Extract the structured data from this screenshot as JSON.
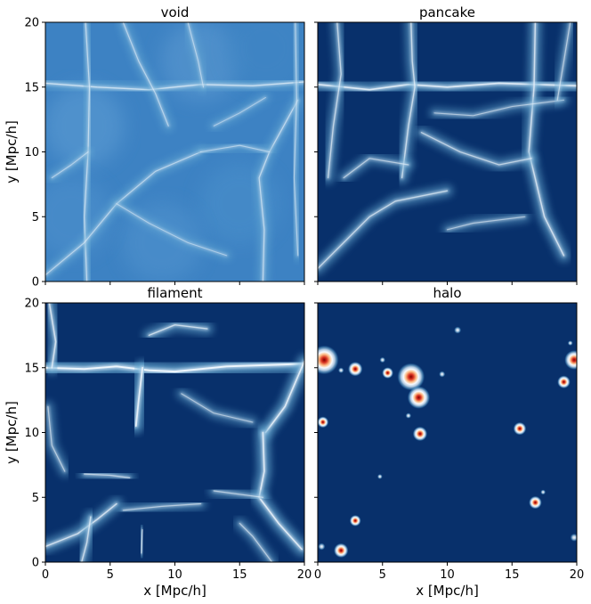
{
  "figure": {
    "colormap": [
      "#08306b",
      "#2171b5",
      "#6baed6",
      "#c6dbef",
      "#f7fbff",
      "#fdbb84",
      "#d7301f",
      "#7f0000"
    ]
  },
  "chart_data": [
    {
      "type": "heatmap",
      "title": "void",
      "xlabel": "",
      "ylabel": "y [Mpc/h]",
      "xlim": [
        0,
        20
      ],
      "ylim": [
        0,
        20
      ],
      "xticks": [
        "0",
        "5",
        "10",
        "15",
        "20"
      ],
      "yticks": [
        "0",
        "5",
        "10",
        "15",
        "20"
      ],
      "background": "#3d82c3",
      "filaments": [
        {
          "points": [
            [
              0,
              15.3
            ],
            [
              4,
              15.0
            ],
            [
              8,
              14.8
            ],
            [
              12,
              15.2
            ],
            [
              16,
              15.1
            ],
            [
              20,
              15.4
            ]
          ],
          "intensity": 0.45
        },
        {
          "points": [
            [
              3.2,
              0
            ],
            [
              3.0,
              5
            ],
            [
              3.3,
              10
            ],
            [
              3.4,
              15
            ],
            [
              3.1,
              20
            ]
          ],
          "intensity": 0.35
        },
        {
          "points": [
            [
              16.8,
              0
            ],
            [
              16.9,
              4
            ],
            [
              16.5,
              8
            ],
            [
              17.3,
              10
            ],
            [
              19.5,
              14
            ]
          ],
          "intensity": 0.35
        },
        {
          "points": [
            [
              0,
              0.5
            ],
            [
              3,
              3
            ],
            [
              5.5,
              6
            ],
            [
              8.5,
              8.5
            ],
            [
              12,
              10
            ]
          ],
          "intensity": 0.3
        },
        {
          "points": [
            [
              6,
              20
            ],
            [
              7.2,
              17
            ],
            [
              8.5,
              14.5
            ],
            [
              9.5,
              12
            ]
          ],
          "intensity": 0.3
        },
        {
          "points": [
            [
              11,
              20
            ],
            [
              11.8,
              17
            ],
            [
              12.2,
              15
            ]
          ],
          "intensity": 0.25
        },
        {
          "points": [
            [
              0.5,
              8
            ],
            [
              2,
              9
            ],
            [
              3.3,
              10
            ]
          ],
          "intensity": 0.25
        },
        {
          "points": [
            [
              12,
              10
            ],
            [
              15,
              10.5
            ],
            [
              17.3,
              10
            ]
          ],
          "intensity": 0.25
        },
        {
          "points": [
            [
              5.5,
              6
            ],
            [
              8,
              4.5
            ],
            [
              11,
              3
            ],
            [
              14,
              2
            ]
          ],
          "intensity": 0.2
        },
        {
          "points": [
            [
              19.3,
              20
            ],
            [
              19.4,
              14
            ],
            [
              19.2,
              8
            ],
            [
              19.5,
              2
            ]
          ],
          "intensity": 0.25
        },
        {
          "points": [
            [
              13,
              12
            ],
            [
              15,
              13
            ],
            [
              17,
              14.2
            ]
          ],
          "intensity": 0.2
        }
      ],
      "halos": []
    },
    {
      "type": "heatmap",
      "title": "pancake",
      "xlabel": "",
      "ylabel": "",
      "xlim": [
        0,
        20
      ],
      "ylim": [
        0,
        20
      ],
      "xticks": [
        "0",
        "5",
        "10",
        "15",
        "20"
      ],
      "yticks": [
        "0",
        "5",
        "10",
        "15",
        "20"
      ],
      "background": "#08306b",
      "filaments": [
        {
          "points": [
            [
              0,
              15.2
            ],
            [
              4,
              14.8
            ],
            [
              7,
              15.2
            ],
            [
              10,
              15.0
            ],
            [
              14,
              15.3
            ],
            [
              20,
              15.1
            ]
          ],
          "intensity": 0.7
        },
        {
          "points": [
            [
              7.2,
              20
            ],
            [
              7.3,
              17
            ],
            [
              7.5,
              15
            ],
            [
              7.0,
              12
            ],
            [
              6.5,
              8
            ]
          ],
          "intensity": 0.5
        },
        {
          "points": [
            [
              1.5,
              20
            ],
            [
              1.8,
              16
            ],
            [
              1.2,
              12
            ],
            [
              0.8,
              8
            ]
          ],
          "intensity": 0.45
        },
        {
          "points": [
            [
              16.8,
              20
            ],
            [
              16.7,
              15
            ],
            [
              16.3,
              10
            ],
            [
              17.5,
              5
            ],
            [
              19,
              2
            ]
          ],
          "intensity": 0.55
        },
        {
          "points": [
            [
              0,
              1
            ],
            [
              2,
              3
            ],
            [
              4,
              5
            ],
            [
              6,
              6.2
            ],
            [
              10,
              7
            ]
          ],
          "intensity": 0.45
        },
        {
          "points": [
            [
              8,
              11.5
            ],
            [
              11,
              10
            ],
            [
              14,
              9
            ],
            [
              16.5,
              9.5
            ]
          ],
          "intensity": 0.4
        },
        {
          "points": [
            [
              9,
              13
            ],
            [
              12,
              12.8
            ],
            [
              15,
              13.5
            ],
            [
              19,
              14
            ]
          ],
          "intensity": 0.3
        },
        {
          "points": [
            [
              2,
              8
            ],
            [
              4,
              9.5
            ],
            [
              7,
              9
            ]
          ],
          "intensity": 0.35
        },
        {
          "points": [
            [
              10,
              4
            ],
            [
              12,
              4.5
            ],
            [
              16,
              5
            ]
          ],
          "intensity": 0.3
        },
        {
          "points": [
            [
              19.5,
              20
            ],
            [
              19,
              17
            ],
            [
              18.5,
              14
            ]
          ],
          "intensity": 0.35
        }
      ],
      "halos": []
    },
    {
      "type": "heatmap",
      "title": "filament",
      "xlabel": "x [Mpc/h]",
      "ylabel": "y [Mpc/h]",
      "xlim": [
        0,
        20
      ],
      "ylim": [
        0,
        20
      ],
      "xticks": [
        "0",
        "5",
        "10",
        "15",
        "20"
      ],
      "yticks": [
        "0",
        "5",
        "10",
        "15",
        "20"
      ],
      "background": "#08306b",
      "filaments": [
        {
          "points": [
            [
              0,
              15.0
            ],
            [
              3,
              14.9
            ],
            [
              5.5,
              15.1
            ],
            [
              8,
              14.8
            ],
            [
              10,
              14.7
            ],
            [
              14,
              15.1
            ],
            [
              20,
              15.3
            ]
          ],
          "intensity": 0.95
        },
        {
          "points": [
            [
              7.5,
              15
            ],
            [
              7.2,
              12.5
            ],
            [
              7.0,
              10.5
            ]
          ],
          "intensity": 0.8
        },
        {
          "points": [
            [
              0.3,
              20
            ],
            [
              0.8,
              17
            ],
            [
              0.5,
              15
            ]
          ],
          "intensity": 0.6
        },
        {
          "points": [
            [
              20,
              15.5
            ],
            [
              18.5,
              12
            ],
            [
              17,
              10
            ]
          ],
          "intensity": 0.7
        },
        {
          "points": [
            [
              16.8,
              10
            ],
            [
              16.9,
              7
            ],
            [
              16.5,
              5
            ],
            [
              18,
              3
            ],
            [
              19.8,
              1
            ]
          ],
          "intensity": 0.7
        },
        {
          "points": [
            [
              0,
              1.2
            ],
            [
              2.5,
              2.2
            ],
            [
              4,
              3.3
            ],
            [
              5.5,
              4.5
            ]
          ],
          "intensity": 0.55
        },
        {
          "points": [
            [
              8,
              17.5
            ],
            [
              10,
              18.3
            ],
            [
              12.5,
              18
            ]
          ],
          "intensity": 0.5
        },
        {
          "points": [
            [
              3.5,
              3.5
            ],
            [
              3.2,
              1.5
            ],
            [
              2.8,
              0
            ]
          ],
          "intensity": 0.5
        },
        {
          "points": [
            [
              13,
              5.5
            ],
            [
              16.8,
              5
            ]
          ],
          "intensity": 0.35
        },
        {
          "points": [
            [
              6,
              4
            ],
            [
              9,
              4.3
            ],
            [
              12,
              4.5
            ]
          ],
          "intensity": 0.35
        },
        {
          "points": [
            [
              3,
              6.8
            ],
            [
              5,
              6.7
            ],
            [
              6.5,
              6.5
            ]
          ],
          "intensity": 0.4
        },
        {
          "points": [
            [
              10.5,
              13
            ],
            [
              13,
              11.5
            ],
            [
              16,
              10.8
            ]
          ],
          "intensity": 0.3
        },
        {
          "points": [
            [
              7.5,
              2.5
            ],
            [
              7.4,
              0.7
            ]
          ],
          "intensity": 0.4
        },
        {
          "points": [
            [
              0.2,
              12
            ],
            [
              0.5,
              9
            ],
            [
              1.5,
              7
            ]
          ],
          "intensity": 0.35
        },
        {
          "points": [
            [
              15,
              3
            ],
            [
              16,
              2
            ],
            [
              17.5,
              0
            ]
          ],
          "intensity": 0.35
        }
      ],
      "halos": []
    },
    {
      "type": "heatmap",
      "title": "halo",
      "xlabel": "x [Mpc/h]",
      "ylabel": "",
      "xlim": [
        0,
        20
      ],
      "ylim": [
        0,
        20
      ],
      "xticks": [
        "0",
        "5",
        "10",
        "15",
        "20"
      ],
      "yticks": [
        "0",
        "5",
        "10",
        "15",
        "20"
      ],
      "background": "#08306b",
      "filaments": [],
      "halos": [
        {
          "x": 0.5,
          "y": 15.6,
          "r": 0.9,
          "peak": 1.0
        },
        {
          "x": 7.2,
          "y": 14.3,
          "r": 0.85,
          "peak": 1.0
        },
        {
          "x": 7.8,
          "y": 12.7,
          "r": 0.7,
          "peak": 1.0
        },
        {
          "x": 19.8,
          "y": 15.6,
          "r": 0.6,
          "peak": 0.9
        },
        {
          "x": 2.9,
          "y": 14.9,
          "r": 0.45,
          "peak": 0.8
        },
        {
          "x": 5.4,
          "y": 14.6,
          "r": 0.35,
          "peak": 0.7
        },
        {
          "x": 19.0,
          "y": 13.9,
          "r": 0.4,
          "peak": 0.8
        },
        {
          "x": 7.9,
          "y": 9.9,
          "r": 0.45,
          "peak": 0.8
        },
        {
          "x": 0.4,
          "y": 10.8,
          "r": 0.35,
          "peak": 0.75
        },
        {
          "x": 15.6,
          "y": 10.3,
          "r": 0.4,
          "peak": 0.8
        },
        {
          "x": 16.8,
          "y": 4.6,
          "r": 0.4,
          "peak": 0.8
        },
        {
          "x": 2.9,
          "y": 3.2,
          "r": 0.35,
          "peak": 0.75
        },
        {
          "x": 1.8,
          "y": 0.9,
          "r": 0.45,
          "peak": 0.85
        },
        {
          "x": 10.8,
          "y": 17.9,
          "r": 0.25,
          "peak": 0.45
        },
        {
          "x": 19.8,
          "y": 1.9,
          "r": 0.28,
          "peak": 0.5
        },
        {
          "x": 5.0,
          "y": 15.6,
          "r": 0.2,
          "peak": 0.4
        },
        {
          "x": 7.0,
          "y": 11.3,
          "r": 0.2,
          "peak": 0.4
        },
        {
          "x": 9.6,
          "y": 14.5,
          "r": 0.22,
          "peak": 0.45
        },
        {
          "x": 4.8,
          "y": 6.6,
          "r": 0.18,
          "peak": 0.4
        },
        {
          "x": 17.4,
          "y": 5.4,
          "r": 0.18,
          "peak": 0.35
        },
        {
          "x": 19.5,
          "y": 16.9,
          "r": 0.18,
          "peak": 0.35
        },
        {
          "x": 0.3,
          "y": 1.2,
          "r": 0.25,
          "peak": 0.4
        },
        {
          "x": 1.8,
          "y": 14.8,
          "r": 0.2,
          "peak": 0.4
        }
      ]
    }
  ]
}
